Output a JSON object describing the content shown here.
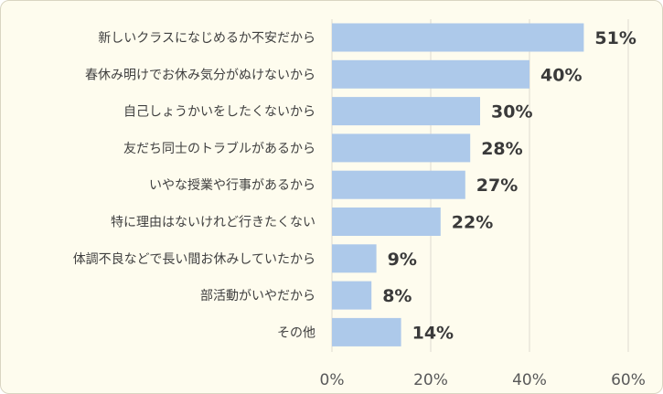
{
  "chart_data": {
    "type": "bar",
    "orientation": "horizontal",
    "categories": [
      "新しいクラスになじめるか不安だから",
      "春休み明けでお休み気分がぬけないから",
      "自己しょうかいをしたくないから",
      "友だち同士のトラブルがあるから",
      "いやな授業や行事があるから",
      "特に理由はないけれど行きたくない",
      "体調不良などで長い間お休みしていたから",
      "部活動がいやだから",
      "その他"
    ],
    "values": [
      51,
      40,
      30,
      28,
      27,
      22,
      9,
      8,
      14
    ],
    "value_labels": [
      "51%",
      "40%",
      "30%",
      "28%",
      "27%",
      "22%",
      "9%",
      "8%",
      "14%"
    ],
    "xlim": [
      0,
      60
    ],
    "x_ticks": [
      0,
      20,
      40,
      60
    ],
    "x_tick_labels": [
      "0%",
      "20%",
      "40%",
      "60%"
    ],
    "grid": true,
    "bar_color": "#adc9ea",
    "background_color": "#fefcee"
  }
}
